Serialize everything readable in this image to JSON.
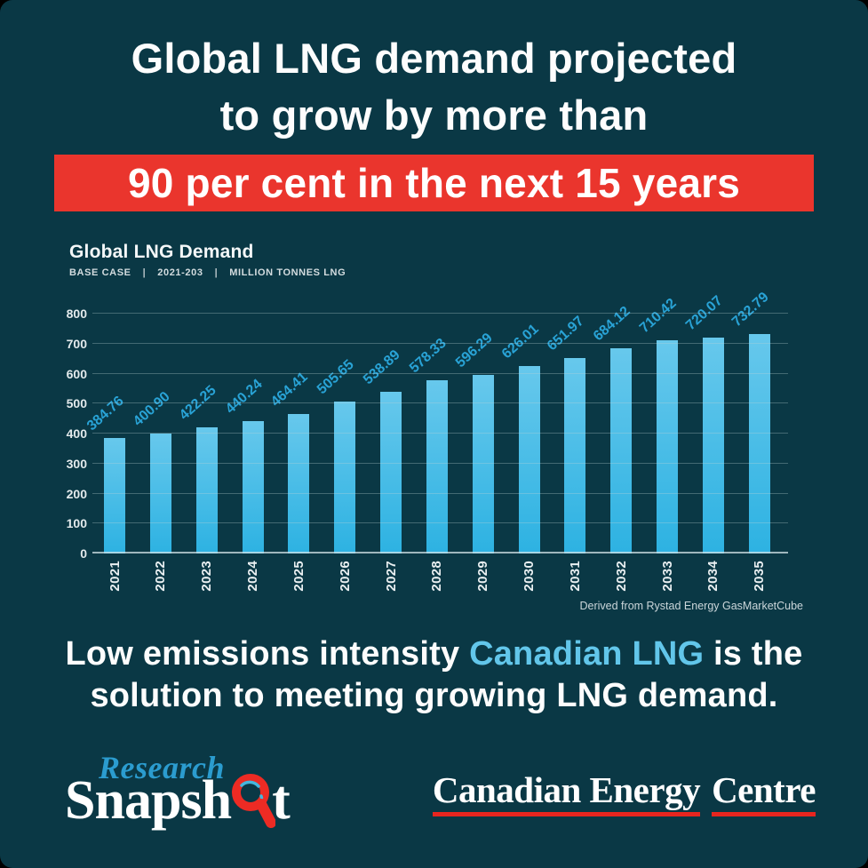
{
  "header": {
    "title_line1": "Global LNG demand projected",
    "title_line2": "to grow by more than",
    "banner": "90 per cent in the next 15 years",
    "banner_color": "#ea352d"
  },
  "chart": {
    "title": "Global LNG Demand",
    "subtitle_segments": [
      "BASE CASE",
      "2021-203",
      "MILLION TONNES LNG"
    ],
    "source": "Derived from Rystad Energy GasMarketCube"
  },
  "chart_data": {
    "type": "bar",
    "title": "Global LNG Demand",
    "subtitle": "BASE CASE | 2021-203 | MILLION TONNES LNG",
    "categories": [
      "2021",
      "2022",
      "2023",
      "2024",
      "2025",
      "2026",
      "2027",
      "2028",
      "2029",
      "2030",
      "2031",
      "2032",
      "2033",
      "2034",
      "2035"
    ],
    "values": [
      384.76,
      400.9,
      422.25,
      440.24,
      464.41,
      505.65,
      538.89,
      578.33,
      596.29,
      626.01,
      651.97,
      684.12,
      710.42,
      720.07,
      732.79
    ],
    "value_labels": [
      "384.76",
      "400.90",
      "422.25",
      "440.24",
      "464.41",
      "505.65",
      "538.89",
      "578.33",
      "596.29",
      "626.01",
      "651.97",
      "684.12",
      "710.42",
      "720.07",
      "732.79"
    ],
    "ylabel": "Million tonnes LNG",
    "xlabel": "",
    "ylim": [
      0,
      800
    ],
    "yticks": [
      0,
      100,
      200,
      300,
      400,
      500,
      600,
      700,
      800
    ],
    "grid": true,
    "legend": false,
    "source": "Derived from Rystad Energy GasMarketCube",
    "bar_color_top": "#67c8ec",
    "bar_color_bottom": "#2db2e2",
    "value_label_color": "#29a3d6"
  },
  "statement": {
    "line1_start": "Low emissions intensity ",
    "line1_highlight": "Canadian LNG",
    "line1_end": " is the",
    "line2": "solution to meeting growing LNG demand.",
    "highlight_color": "#62c6ea"
  },
  "footer": {
    "research_snapshot": {
      "word1": "Research",
      "word2_start": "Snapsh",
      "word2_end": "t",
      "magnifier_icon": "magnifying-glass-icon",
      "word1_color": "#2b9ccf"
    },
    "cec": {
      "part1": "Canadian Energy",
      "part2": "Centre",
      "underline_color": "#e8251f"
    }
  },
  "colors": {
    "background": "#0a3845",
    "text": "#ffffff",
    "accent_red": "#ea352d",
    "accent_blue": "#62c6ea"
  }
}
